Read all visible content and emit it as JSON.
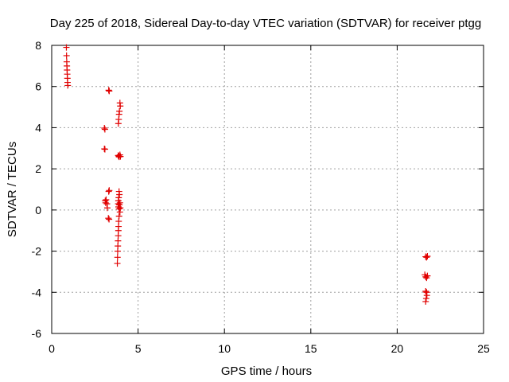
{
  "chart_data": {
    "type": "scatter",
    "title": "Day 225 of 2018, Sidereal Day-to-day VTEC variation (SDTVAR) for receiver ptgg",
    "xlabel": "GPS time / hours",
    "ylabel": "SDTVAR / TECUs",
    "xlim": [
      0,
      25
    ],
    "ylim": [
      -6,
      8
    ],
    "xticks": [
      0,
      5,
      10,
      15,
      20,
      25
    ],
    "yticks": [
      -6,
      -4,
      -2,
      0,
      2,
      4,
      6,
      8
    ],
    "grid": true,
    "marker": "+",
    "marker_color": "#e00000",
    "series": [
      {
        "name": "SDTVAR",
        "points": [
          [
            0.85,
            7.9
          ],
          [
            0.86,
            7.5
          ],
          [
            0.87,
            7.2
          ],
          [
            0.88,
            7.0
          ],
          [
            0.89,
            6.8
          ],
          [
            0.9,
            6.6
          ],
          [
            0.91,
            6.4
          ],
          [
            0.92,
            6.2
          ],
          [
            0.93,
            6.05
          ],
          [
            3.3,
            5.82
          ],
          [
            3.33,
            5.78
          ],
          [
            3.05,
            3.98
          ],
          [
            3.08,
            3.92
          ],
          [
            3.05,
            2.97
          ],
          [
            3.08,
            2.95
          ],
          [
            3.15,
            0.5
          ],
          [
            3.2,
            0.3
          ],
          [
            3.22,
            0.1
          ],
          [
            3.3,
            0.9
          ],
          [
            3.33,
            0.95
          ],
          [
            3.28,
            -0.4
          ],
          [
            3.32,
            -0.45
          ],
          [
            3.1,
            0.45
          ],
          [
            3.12,
            0.35
          ],
          [
            3.95,
            5.2
          ],
          [
            3.97,
            5.05
          ],
          [
            3.92,
            4.8
          ],
          [
            3.9,
            4.65
          ],
          [
            3.88,
            4.4
          ],
          [
            3.86,
            4.2
          ],
          [
            3.85,
            2.65
          ],
          [
            3.88,
            2.62
          ],
          [
            3.9,
            2.58
          ],
          [
            3.95,
            2.68
          ],
          [
            3.98,
            2.6
          ],
          [
            3.9,
            0.9
          ],
          [
            3.92,
            0.75
          ],
          [
            3.88,
            0.6
          ],
          [
            3.86,
            0.45
          ],
          [
            3.85,
            0.3
          ],
          [
            3.87,
            0.15
          ],
          [
            3.9,
            0.05
          ],
          [
            3.92,
            0.25
          ],
          [
            3.95,
            0.35
          ],
          [
            3.97,
            0.1
          ],
          [
            3.95,
            -0.1
          ],
          [
            3.9,
            -0.3
          ],
          [
            3.88,
            -0.55
          ],
          [
            3.87,
            -0.8
          ],
          [
            3.86,
            -1.0
          ],
          [
            3.85,
            -1.25
          ],
          [
            3.84,
            -1.5
          ],
          [
            3.83,
            -1.75
          ],
          [
            3.82,
            -2.0
          ],
          [
            3.81,
            -2.3
          ],
          [
            3.8,
            -2.6
          ],
          [
            21.65,
            -2.27
          ],
          [
            21.7,
            -2.3
          ],
          [
            21.75,
            -2.25
          ],
          [
            21.6,
            -3.15
          ],
          [
            21.65,
            -3.25
          ],
          [
            21.7,
            -3.3
          ],
          [
            21.75,
            -3.2
          ],
          [
            21.65,
            -3.95
          ],
          [
            21.7,
            -4.0
          ],
          [
            21.72,
            -4.15
          ],
          [
            21.68,
            -4.3
          ],
          [
            21.65,
            -4.45
          ]
        ]
      }
    ]
  }
}
